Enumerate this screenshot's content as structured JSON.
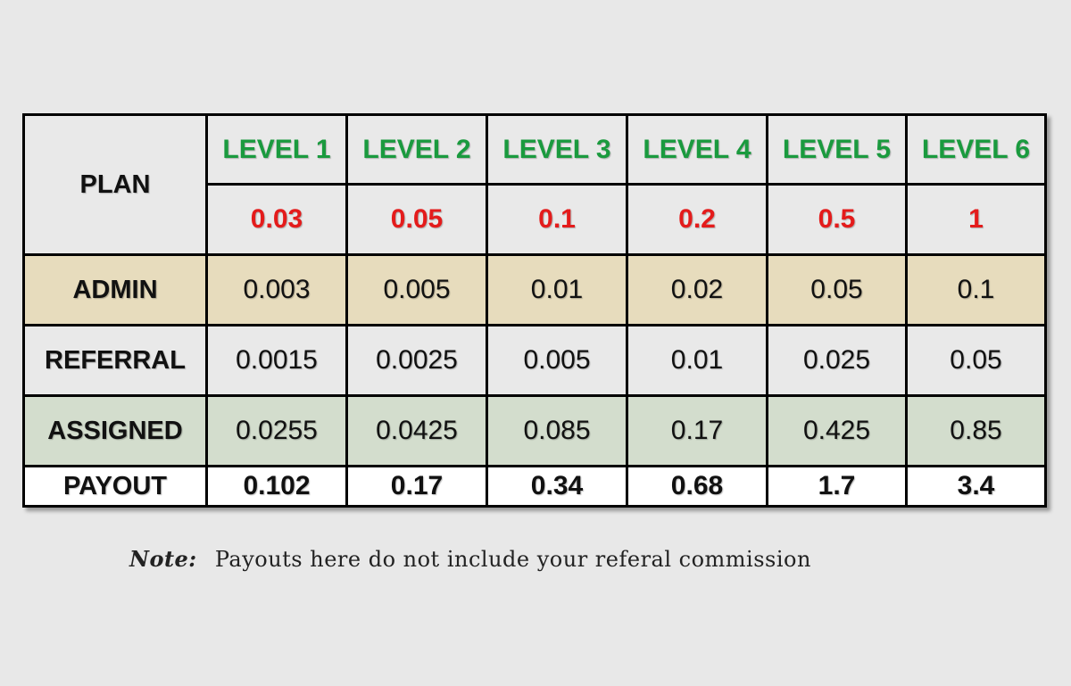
{
  "table": {
    "plan_label": "PLAN",
    "levels": [
      "LEVEL 1",
      "LEVEL 2",
      "LEVEL 3",
      "LEVEL 4",
      "LEVEL 5",
      "LEVEL 6"
    ],
    "prices": [
      "0.03",
      "0.05",
      "0.1",
      "0.2",
      "0.5",
      "1"
    ],
    "rows": [
      {
        "label": "ADMIN",
        "values": [
          "0.003",
          "0.005",
          "0.01",
          "0.02",
          "0.05",
          "0.1"
        ]
      },
      {
        "label": "REFERRAL",
        "values": [
          "0.0015",
          "0.0025",
          "0.005",
          "0.01",
          "0.025",
          "0.05"
        ]
      },
      {
        "label": "ASSIGNED",
        "values": [
          "0.0255",
          "0.0425",
          "0.085",
          "0.17",
          "0.425",
          "0.85"
        ]
      },
      {
        "label": "PAYOUT",
        "values": [
          "0.102",
          "0.17",
          "0.34",
          "0.68",
          "1.7",
          "3.4"
        ]
      }
    ]
  },
  "note": {
    "label": "Note:",
    "text": "Payouts here do not include your referal commission"
  },
  "colors": {
    "level_text": "#1a9a3e",
    "price_text": "#e41b1b",
    "admin_row": "#e7dcbd",
    "assigned_row": "#d3ddcd",
    "background": "#e8e8e8"
  }
}
